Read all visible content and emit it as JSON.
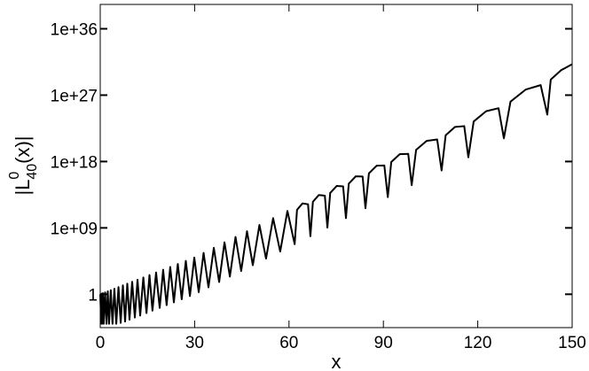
{
  "chart_data": {
    "type": "line",
    "xlabel": "x",
    "ylabel": {
      "base": "|L",
      "sup": "0",
      "sub": "40",
      "tail": "(x)|"
    },
    "log_y": true,
    "color": "#000000",
    "xlim": [
      0,
      150
    ],
    "xticks": [
      0,
      30,
      60,
      90,
      120,
      150
    ],
    "ylim": [
      3e-05,
      2e+39
    ],
    "yticks": [
      1,
      {
        "value": 1000000000.0,
        "label": "1e+09"
      },
      {
        "value": 1e+18,
        "label": "1e+18"
      },
      {
        "value": 1e+27,
        "label": "1e+27"
      },
      {
        "value": 1e+36,
        "label": "1e+36"
      }
    ],
    "x": [
      0,
      0.3,
      0.45,
      0.6,
      0.85,
      1.1,
      1.55,
      2.0,
      2.4,
      2.8,
      3.35,
      3.9,
      4.5,
      5.1,
      5.8,
      6.5,
      7.2,
      7.9,
      8.6,
      9.3,
      10.15,
      11.0,
      11.85,
      12.7,
      13.7,
      14.7,
      15.65,
      16.6,
      17.75,
      18.9,
      20,
      21.1,
      22.25,
      23.4,
      24.65,
      25.9,
      27.2,
      28.5,
      29.9,
      31.3,
      32.85,
      34.4,
      36.1,
      37.8,
      39.5,
      41.2,
      43,
      44.8,
      46.65,
      48.5,
      50.6,
      52.7,
      54.95,
      57.2,
      59.5,
      61.8,
      62.55,
      64.3,
      66.05,
      66.8,
      67.6,
      69.5,
      71.4,
      72.2,
      73.1,
      75.15,
      77.2,
      78.1,
      79.0,
      81.2,
      83.4,
      84.3,
      85.4,
      87.85,
      90.3,
      91.4,
      92.5,
      95.2,
      97.9,
      99,
      100.4,
      103.75,
      107.1,
      108.5,
      109.8,
      112.75,
      115.7,
      117,
      118.7,
      122.65,
      126.6,
      128.3,
      130.4,
      135.2,
      140,
      142.1,
      143.2,
      146.5,
      150
    ],
    "values": [
      1,
      0.0001,
      1.2,
      0.0001,
      1.4,
      0.0001,
      1.8,
      0.0001,
      2.5,
      0.0001,
      3.6,
      0.0001,
      5.6,
      0.0001,
      9.3,
      0.00013,
      16,
      0.0002,
      27,
      0.00035,
      49,
      0.0007,
      95,
      0.0013,
      190,
      0.0028,
      410,
      0.006,
      900,
      0.014,
      2100,
      0.033,
      5100,
      0.08,
      13000,
      0.21,
      34000,
      0.56,
      95000,
      1.9,
      410000.0,
      8.7,
      2000000.0,
      46,
      11000000.0,
      250,
      59000000.0,
      1400,
      350000000.0,
      8700,
      2500000000.0,
      69000,
      21000000000.0,
      630000.0,
      200000000000.0,
      6200000.0,
      280000000000.0,
      2100000000000.0,
      1600000000000.0,
      74000000.0,
      3500000000000.0,
      29000000000000.0,
      23000000000000.0,
      1100000000.0,
      55000000000000.0,
      480000000000000.0,
      430000000000000.0,
      21000000000.0,
      1000000000000000.0,
      9800000000000000.0,
      9300000000000000.0,
      460000000000.0,
      2.5e+16,
      2.7e+17,
      2.9e+17,
      15000000000000.0,
      8.5e+17,
      9.8e+18,
      1.1e+19,
      620000000000000.0,
      3.8e+19,
      6.2e+20,
      9.8e+20,
      6.2e+16,
      3.6e+21,
      4.8e+22,
      6.3e+22,
      3.7e+18,
      2.7e+23,
      6.6e+24,
      1.7e+25,
      1.4e+21,
      1.3e+26,
      5.6e+27,
      2.3e+28,
      2.3e+24,
      1.3e+29,
      2.4e+30,
      1.6e+31
    ]
  }
}
